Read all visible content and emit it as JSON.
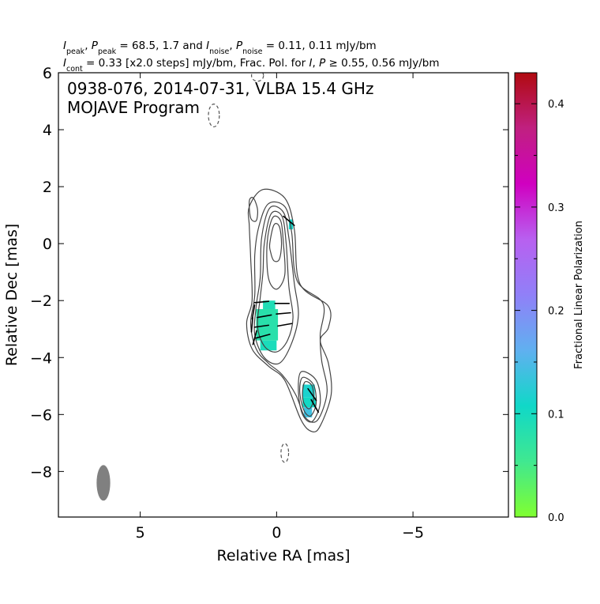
{
  "header": {
    "line1": "I_peak, P_peak = 68.5, 1.7 and I_noise, P_noise = 0.11, 0.11 mJy/bm",
    "line2": "I_cont = 0.33 [x2.0 steps] mJy/bm, Frac. Pol. for I, P ≥ 0.55, 0.56 mJy/bm"
  },
  "annotation": {
    "line1": "0938-076, 2014-07-31, VLBA 15.4 GHz",
    "line2": "MOJAVE Program"
  },
  "chart_data": {
    "type": "contour",
    "xlabel": "Relative RA [mas]",
    "ylabel": "Relative Dec [mas]",
    "xlim": [
      8.0,
      -8.5
    ],
    "ylim": [
      -9.6,
      6.0
    ],
    "x_ticks": [
      5,
      0,
      -5
    ],
    "x_tick_labels": [
      "5",
      "0",
      "−5"
    ],
    "y_ticks": [
      6,
      4,
      2,
      0,
      -2,
      -4,
      -6,
      -8
    ],
    "y_tick_labels": [
      "6",
      "4",
      "2",
      "0",
      "−2",
      "−4",
      "−6",
      "−8"
    ],
    "colorbar": {
      "label": "Fractional Linear Polarization",
      "range": [
        0.0,
        0.43
      ],
      "ticks": [
        0.0,
        0.1,
        0.2,
        0.3,
        0.4
      ],
      "tick_labels": [
        "0.0",
        "0.1",
        "0.2",
        "0.3",
        "0.4"
      ],
      "colors": [
        "#80ff30",
        "#40e890",
        "#10d8c8",
        "#60b0f0",
        "#9080f8",
        "#b860f0",
        "#d000c0",
        "#c02080",
        "#b00a10"
      ]
    },
    "beam": {
      "x": 6.35,
      "y": -8.4,
      "major_mas": 1.25,
      "minor_mas": 0.5,
      "pa_deg": 0,
      "color": "#808080"
    },
    "contours": [
      {
        "level": 1,
        "points": [
          [
            1.0,
            1.3
          ],
          [
            0.5,
            1.9
          ],
          [
            -0.3,
            1.6
          ],
          [
            -0.65,
            0.5
          ],
          [
            -0.85,
            -1.4
          ],
          [
            -1.9,
            -2.2
          ],
          [
            -1.9,
            -2.95
          ],
          [
            -1.6,
            -3.4
          ],
          [
            -1.9,
            -4.2
          ],
          [
            -2.0,
            -5.3
          ],
          [
            -1.6,
            -6.4
          ],
          [
            -1.3,
            -6.6
          ],
          [
            -0.9,
            -6.2
          ],
          [
            -0.3,
            -4.8
          ],
          [
            0.3,
            -4.3
          ],
          [
            0.9,
            -3.7
          ],
          [
            1.1,
            -2.8
          ],
          [
            0.9,
            -2.0
          ],
          [
            0.95,
            -0.5
          ],
          [
            1.0,
            0.6
          ]
        ]
      },
      {
        "level": 2,
        "points": [
          [
            0.65,
            0.6
          ],
          [
            0.3,
            1.4
          ],
          [
            -0.3,
            1.3
          ],
          [
            -0.55,
            0.4
          ],
          [
            -0.75,
            -1.3
          ],
          [
            -1.7,
            -2.1
          ],
          [
            -1.6,
            -3.2
          ],
          [
            -1.65,
            -4.1
          ],
          [
            -1.85,
            -5.2
          ],
          [
            -1.5,
            -6.2
          ],
          [
            -1.05,
            -6.1
          ],
          [
            -0.7,
            -5.3
          ],
          [
            -0.2,
            -4.6
          ],
          [
            0.3,
            -4.2
          ],
          [
            0.75,
            -3.7
          ],
          [
            0.95,
            -2.8
          ],
          [
            0.8,
            -1.8
          ],
          [
            0.8,
            -0.4
          ]
        ]
      },
      {
        "level": 4,
        "points": [
          [
            0.55,
            0.2
          ],
          [
            0.25,
            1.25
          ],
          [
            -0.25,
            1.1
          ],
          [
            -0.45,
            0.2
          ],
          [
            -0.65,
            -1.4
          ],
          [
            -0.8,
            -2.5
          ],
          [
            -0.55,
            -3.5
          ],
          [
            -0.1,
            -4.2
          ],
          [
            0.45,
            -4.0
          ],
          [
            0.8,
            -3.2
          ],
          [
            0.75,
            -2.2
          ],
          [
            0.6,
            -1.2
          ]
        ]
      },
      {
        "level": 8,
        "points": [
          [
            0.45,
            0.0
          ],
          [
            0.2,
            1.05
          ],
          [
            -0.2,
            0.95
          ],
          [
            -0.35,
            0.0
          ],
          [
            -0.45,
            -1.5
          ],
          [
            -0.6,
            -2.6
          ],
          [
            -0.4,
            -3.4
          ],
          [
            0.0,
            -3.8
          ],
          [
            0.45,
            -3.6
          ],
          [
            0.7,
            -2.9
          ],
          [
            0.6,
            -1.9
          ],
          [
            0.5,
            -1.0
          ]
        ]
      },
      {
        "level": 16,
        "points": [
          [
            0.35,
            0.0
          ],
          [
            0.15,
            0.9
          ],
          [
            -0.15,
            0.8
          ],
          [
            -0.25,
            0.0
          ],
          [
            -0.3,
            -1.1
          ],
          [
            0.0,
            -1.6
          ],
          [
            0.3,
            -1.2
          ]
        ]
      },
      {
        "level": 32,
        "points": [
          [
            0.25,
            0.0
          ],
          [
            0.1,
            0.65
          ],
          [
            -0.1,
            0.6
          ],
          [
            -0.18,
            0.0
          ],
          [
            -0.1,
            -0.55
          ],
          [
            0.1,
            -0.6
          ],
          [
            0.22,
            -0.3
          ]
        ]
      },
      {
        "level": 4,
        "points": [
          [
            -0.9,
            -4.5
          ],
          [
            -1.45,
            -4.8
          ],
          [
            -1.6,
            -5.6
          ],
          [
            -1.3,
            -6.25
          ],
          [
            -0.95,
            -6.0
          ],
          [
            -0.8,
            -5.2
          ]
        ]
      },
      {
        "level": 8,
        "points": [
          [
            -0.95,
            -4.7
          ],
          [
            -1.35,
            -4.95
          ],
          [
            -1.45,
            -5.6
          ],
          [
            -1.25,
            -6.05
          ],
          [
            -1.0,
            -5.85
          ],
          [
            -0.85,
            -5.2
          ]
        ]
      },
      {
        "level": 16,
        "points": [
          [
            -1.05,
            -4.85
          ],
          [
            -1.3,
            -5.0
          ],
          [
            -1.35,
            -5.5
          ],
          [
            -1.2,
            -5.8
          ],
          [
            -1.0,
            -5.6
          ],
          [
            -0.95,
            -5.2
          ]
        ]
      },
      {
        "level": 1,
        "points": [
          [
            1.0,
            1.5
          ],
          [
            0.85,
            1.6
          ],
          [
            0.7,
            1.2
          ],
          [
            0.75,
            0.8
          ],
          [
            0.95,
            0.9
          ]
        ]
      }
    ],
    "negative_contours": [
      {
        "cx": 2.3,
        "cy": 4.5,
        "rx": 0.2,
        "ry": 0.4
      },
      {
        "cx": -0.3,
        "cy": -7.35,
        "rx": 0.14,
        "ry": 0.33
      },
      {
        "cx": 0.7,
        "cy": 5.9,
        "rx": 0.22,
        "ry": 0.2
      }
    ],
    "polarization_pixels": [
      {
        "x": 0.5,
        "y": -2.0,
        "w": 0.45,
        "h": 0.3,
        "frac": 0.09
      },
      {
        "x": 0.75,
        "y": -2.3,
        "w": 0.8,
        "h": 1.1,
        "frac": 0.08
      },
      {
        "x": 0.6,
        "y": -3.4,
        "w": 0.6,
        "h": 0.35,
        "frac": 0.095
      },
      {
        "x": -0.45,
        "y": 0.85,
        "w": 0.15,
        "h": 0.35,
        "frac": 0.11
      },
      {
        "x": -0.95,
        "y": -4.95,
        "w": 0.45,
        "h": 0.45,
        "frac": 0.115
      },
      {
        "x": -0.95,
        "y": -5.4,
        "w": 0.5,
        "h": 0.35,
        "frac": 0.105
      },
      {
        "x": -1.0,
        "y": -5.75,
        "w": 0.3,
        "h": 0.35,
        "frac": 0.14
      }
    ],
    "evpa_ticks": [
      {
        "x": 0.55,
        "y": -2.05,
        "angle_deg": 5
      },
      {
        "x": 0.45,
        "y": -2.55,
        "angle_deg": 10
      },
      {
        "x": 0.55,
        "y": -2.9,
        "angle_deg": 8
      },
      {
        "x": 0.5,
        "y": -3.25,
        "angle_deg": 15
      },
      {
        "x": -0.2,
        "y": -2.1,
        "angle_deg": 0
      },
      {
        "x": -0.25,
        "y": -2.45,
        "angle_deg": 5
      },
      {
        "x": -0.3,
        "y": -2.85,
        "angle_deg": 10
      },
      {
        "x": 0.85,
        "y": -2.4,
        "angle_deg": 80
      },
      {
        "x": 0.9,
        "y": -2.85,
        "angle_deg": 85
      },
      {
        "x": 0.8,
        "y": -3.3,
        "angle_deg": 75
      },
      {
        "x": -0.45,
        "y": 0.8,
        "angle_deg": -40
      },
      {
        "x": -1.3,
        "y": -5.3,
        "angle_deg": -55
      },
      {
        "x": -1.4,
        "y": -5.7,
        "angle_deg": -60
      }
    ]
  }
}
